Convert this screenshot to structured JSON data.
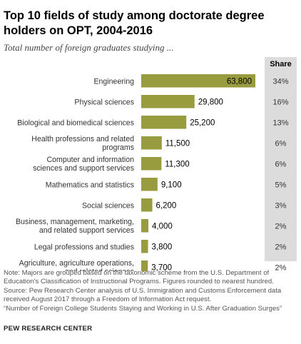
{
  "title": "Top 10 fields of study among doctorate degree holders on OPT, 2004-2016",
  "subtitle": "Total number of foreign graduates studying ...",
  "share_header": "Share",
  "colors": {
    "bar": "#999b3f",
    "share_panel": "#dcdcdc",
    "text": "#333333"
  },
  "chart_data": {
    "type": "bar",
    "orientation": "horizontal",
    "categories": [
      "Engineering",
      "Physical sciences",
      "Biological and biomedical sciences",
      "Health professions and related programs",
      "Computer and information sciences and support services",
      "Mathematics and statistics",
      "Social sciences",
      "Business, management, marketing, and related support services",
      "Legal professions and studies",
      "Agriculture, agriculture operations, and related sciences"
    ],
    "category_lines": [
      [
        "Engineering"
      ],
      [
        "Physical sciences"
      ],
      [
        "Biological and biomedical sciences"
      ],
      [
        "Health professions and related",
        "programs"
      ],
      [
        "Computer and information",
        "sciences and support services"
      ],
      [
        "Mathematics and statistics"
      ],
      [
        "Social sciences"
      ],
      [
        "Business, management, marketing,",
        "and related support services"
      ],
      [
        "Legal professions and studies"
      ],
      [
        "Agriculture, agriculture operations,",
        "and related sciences"
      ]
    ],
    "values": [
      63800,
      29800,
      25200,
      11500,
      11300,
      9100,
      6200,
      4000,
      3800,
      3700
    ],
    "value_labels": [
      "63,800",
      "29,800",
      "25,200",
      "11,500",
      "11,300",
      "9,100",
      "6,200",
      "4,000",
      "3,800",
      "3,700"
    ],
    "shares": [
      "34%",
      "16%",
      "13%",
      "6%",
      "6%",
      "5%",
      "3%",
      "2%",
      "2%",
      "2%"
    ],
    "xlim": [
      0,
      63800
    ],
    "grid": false,
    "legend": "none"
  },
  "notes": [
    "Note: Majors are grouped based on the taxonomic scheme from the U.S. Department of",
    "Education's Classification of Instructional Programs. Figures rounded to nearest hundred.",
    "Source: Pew Research Center analysis of U.S. Immigration and Customs Enforcement data",
    "received August 2017 through a Freedom of Information Act request.",
    "“Number of Foreign College Students Staying and Working in U.S. After Graduation Surges”"
  ],
  "brand": "PEW RESEARCH CENTER"
}
